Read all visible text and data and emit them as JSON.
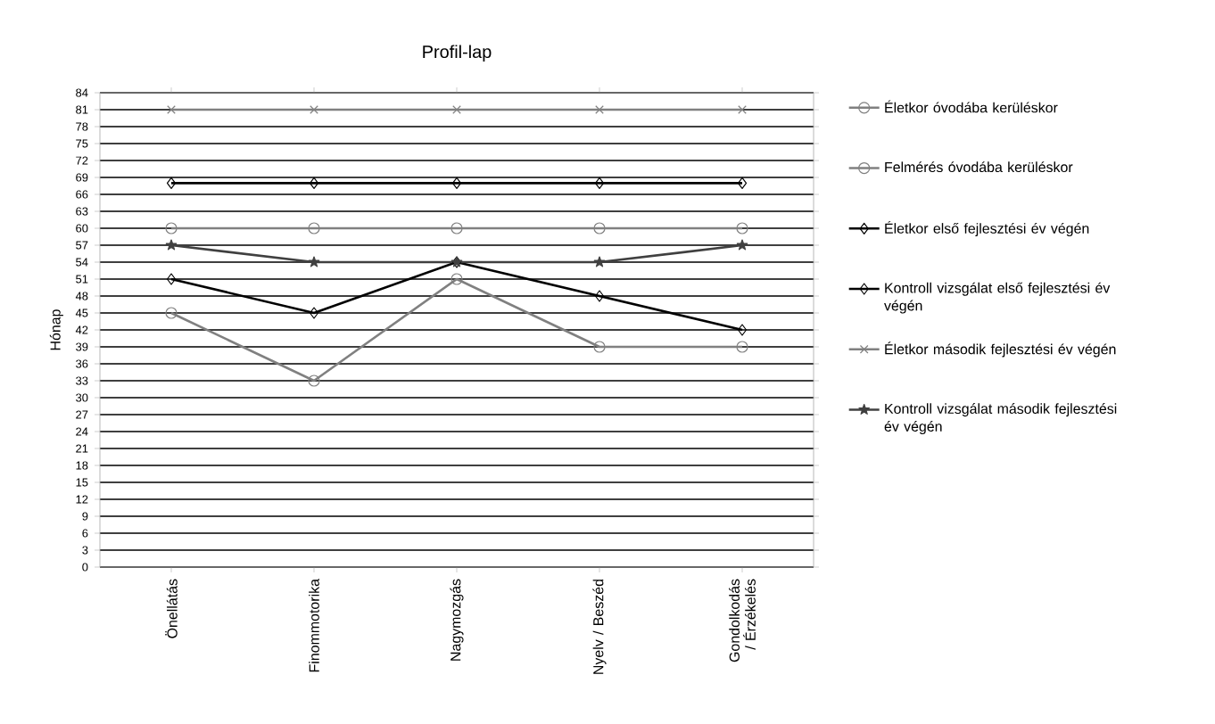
{
  "chart_data": {
    "type": "line",
    "title": "Profil-lap",
    "ylabel": "Hónap",
    "categories": [
      "Önellátás",
      "Finommotorika",
      "Nagymozgás",
      "Nyelv / Beszéd",
      "Gondolkodás / Érzékelés"
    ],
    "series": [
      {
        "name": "Életkor óvodába kerüléskor",
        "color": "#808080",
        "marker": "circle",
        "values": [
          60,
          60,
          60,
          60,
          60
        ]
      },
      {
        "name": "Felmérés óvodába kerüléskor",
        "color": "#808080",
        "marker": "circle",
        "values": [
          45,
          33,
          51,
          39,
          39
        ]
      },
      {
        "name": "Életkor első fejlesztési év végén",
        "color": "#000000",
        "marker": "diamond",
        "values": [
          68,
          68,
          68,
          68,
          68
        ]
      },
      {
        "name": "Kontroll vizsgálat első fejlesztési év végén",
        "color": "#000000",
        "marker": "diamond",
        "values": [
          51,
          45,
          54,
          48,
          42
        ]
      },
      {
        "name": "Életkor második fejlesztési év végén",
        "color": "#808080",
        "marker": "cross",
        "values": [
          81,
          81,
          81,
          81,
          81
        ]
      },
      {
        "name": "Kontroll vizsgálat második fejlesztési év végén",
        "color": "#404040",
        "marker": "star",
        "values": [
          57,
          54,
          54,
          54,
          57
        ]
      }
    ],
    "ylim": [
      0,
      84
    ],
    "yticks": [
      0,
      3,
      6,
      9,
      12,
      15,
      18,
      21,
      24,
      27,
      30,
      33,
      36,
      39,
      42,
      45,
      48,
      51,
      54,
      57,
      60,
      63,
      66,
      69,
      72,
      75,
      78,
      81,
      84
    ],
    "grid": "y",
    "legend": "right"
  }
}
